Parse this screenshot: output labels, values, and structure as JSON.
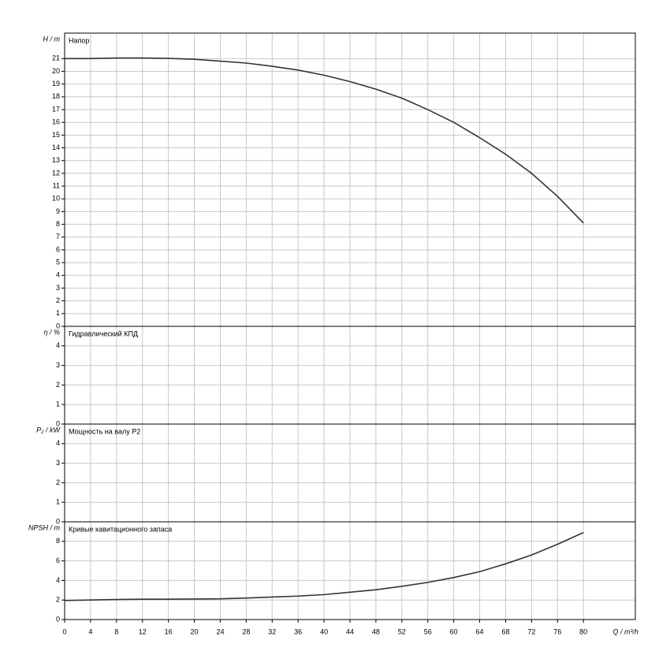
{
  "chart_data": [
    {
      "type": "line",
      "title": "Напор",
      "ylabel": "H / m",
      "ylim": [
        0,
        23
      ],
      "yticks": [
        0,
        1,
        2,
        3,
        4,
        5,
        6,
        7,
        8,
        9,
        10,
        11,
        12,
        13,
        14,
        15,
        16,
        17,
        18,
        19,
        20,
        21
      ],
      "grid": true,
      "x": [
        0,
        4,
        8,
        12,
        16,
        20,
        24,
        28,
        32,
        36,
        40,
        44,
        48,
        52,
        56,
        60,
        64,
        68,
        72,
        76,
        80
      ],
      "series": [
        {
          "color": "#333333",
          "values": [
            21,
            21.0,
            21.05,
            21.05,
            21.02,
            20.95,
            20.8,
            20.65,
            20.4,
            20.1,
            19.7,
            19.2,
            18.6,
            17.9,
            17.0,
            16.0,
            14.8,
            13.5,
            12.0,
            10.2,
            8.1
          ]
        }
      ]
    },
    {
      "type": "line",
      "title": "Гидравлический КПД",
      "ylabel": "η / %",
      "ylim": [
        0,
        5
      ],
      "yticks": [
        0,
        1,
        2,
        3,
        4
      ],
      "grid": true,
      "x": [],
      "series": []
    },
    {
      "type": "line",
      "title": "Мощность на валу P2",
      "ylabel": "P₂ / kW",
      "ylim": [
        0,
        5
      ],
      "yticks": [
        0,
        1,
        2,
        3,
        4
      ],
      "grid": true,
      "x": [],
      "series": []
    },
    {
      "type": "line",
      "title": "Кривые кавитационного запаса",
      "ylabel": "NPSH / m",
      "ylim": [
        0,
        10
      ],
      "yticks": [
        0,
        2,
        4,
        6,
        8
      ],
      "grid": true,
      "xlabel": "Q / m³/h",
      "xlim": [
        0,
        88
      ],
      "xticks": [
        0,
        4,
        8,
        12,
        16,
        20,
        24,
        28,
        32,
        36,
        40,
        44,
        48,
        52,
        56,
        60,
        64,
        68,
        72,
        76,
        80
      ],
      "x": [
        0,
        8,
        12,
        16,
        20,
        24,
        28,
        32,
        36,
        40,
        44,
        48,
        52,
        56,
        60,
        64,
        68,
        72,
        76,
        80
      ],
      "series": [
        {
          "color": "#333333",
          "values": [
            1.95,
            2.05,
            2.08,
            2.08,
            2.1,
            2.12,
            2.2,
            2.3,
            2.4,
            2.55,
            2.8,
            3.05,
            3.4,
            3.8,
            4.3,
            4.9,
            5.7,
            6.6,
            7.7,
            8.9
          ]
        }
      ]
    }
  ]
}
